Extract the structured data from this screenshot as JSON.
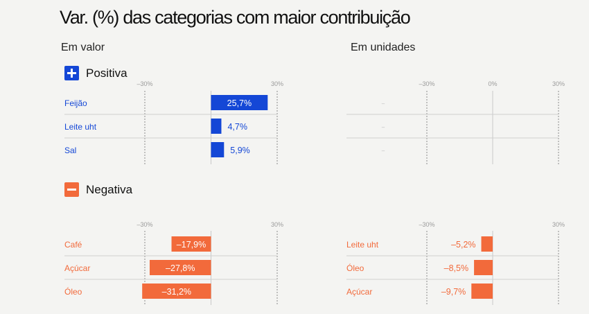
{
  "title": "Var. (%) das categorias com maior contribuição",
  "subtitles": {
    "value": "Em valor",
    "units": "Em unidades"
  },
  "sections": {
    "positive": {
      "label": "Positiva",
      "icon": "plus-icon",
      "color": "#1447d6"
    },
    "negative": {
      "label": "Negativa",
      "icon": "minus-icon",
      "color": "#f26a3b"
    }
  },
  "colors": {
    "positive": "#1447d6",
    "negative": "#f26a3b",
    "axis": "#9a9a9a",
    "grid": "#cfcfcf"
  },
  "chart_data": [
    {
      "id": "positiva-valor",
      "type": "bar",
      "orientation": "horizontal",
      "xlim": [
        -30,
        30
      ],
      "ticks": [
        "-30%",
        "30%"
      ],
      "categories": [
        "Feijão",
        "Leite uht",
        "Sal"
      ],
      "values": [
        25.7,
        4.7,
        5.9
      ],
      "labels": [
        "25,7%",
        "4,7%",
        "5,9%"
      ],
      "color": "#1447d6"
    },
    {
      "id": "positiva-unidades",
      "type": "bar",
      "orientation": "horizontal",
      "xlim": [
        -30,
        30
      ],
      "ticks": [
        "-30%",
        "0%",
        "30%"
      ],
      "categories": [
        "",
        "",
        ""
      ],
      "values": [
        null,
        null,
        null
      ],
      "labels": [
        "–",
        "–",
        "–"
      ],
      "color": "#1447d6"
    },
    {
      "id": "negativa-valor",
      "type": "bar",
      "orientation": "horizontal",
      "xlim": [
        -30,
        30
      ],
      "ticks": [
        "-30%",
        "30%"
      ],
      "categories": [
        "Café",
        "Açúcar",
        "Óleo"
      ],
      "values": [
        -17.9,
        -27.8,
        -31.2
      ],
      "labels": [
        "-17,9%",
        "-27,8%",
        "-31,2%"
      ],
      "color": "#f26a3b"
    },
    {
      "id": "negativa-unidades",
      "type": "bar",
      "orientation": "horizontal",
      "xlim": [
        -30,
        30
      ],
      "ticks": [
        "-30%",
        "30%"
      ],
      "categories": [
        "Leite uht",
        "Óleo",
        "Açúcar"
      ],
      "values": [
        -5.2,
        -8.5,
        -9.7
      ],
      "labels": [
        "-5,2%",
        "-8,5%",
        "-9,7%"
      ],
      "color": "#f26a3b"
    }
  ]
}
